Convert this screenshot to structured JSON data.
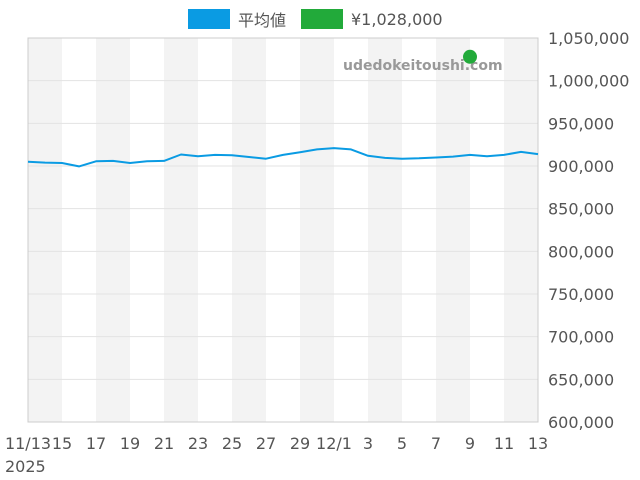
{
  "chart_data": {
    "type": "line",
    "x_tick_labels": [
      "11/13",
      "15",
      "17",
      "19",
      "21",
      "23",
      "25",
      "27",
      "29",
      "12/1",
      "3",
      "5",
      "7",
      "9",
      "11",
      "13"
    ],
    "x_year_label": "2025",
    "ylim": [
      600000,
      1050000
    ],
    "y_tick_values": [
      600000,
      650000,
      700000,
      750000,
      800000,
      850000,
      900000,
      950000,
      1000000,
      1050000
    ],
    "y_tick_labels": [
      "600,000",
      "650,000",
      "700,000",
      "750,000",
      "800,000",
      "850,000",
      "900,000",
      "950,000",
      "1,000,000",
      "1,050,000"
    ],
    "series": [
      {
        "name": "平均値",
        "color": "#0a9be3",
        "x": [
          "2025-11-13",
          "2025-11-14",
          "2025-11-15",
          "2025-11-16",
          "2025-11-17",
          "2025-11-18",
          "2025-11-19",
          "2025-11-20",
          "2025-11-21",
          "2025-11-22",
          "2025-11-23",
          "2025-11-24",
          "2025-11-25",
          "2025-11-26",
          "2025-11-27",
          "2025-11-28",
          "2025-11-29",
          "2025-11-30",
          "2025-12-01",
          "2025-12-02",
          "2025-12-03",
          "2025-12-04",
          "2025-12-05",
          "2025-12-06",
          "2025-12-07",
          "2025-12-08",
          "2025-12-09",
          "2025-12-10",
          "2025-12-11",
          "2025-12-12",
          "2025-12-13"
        ],
        "values": [
          905000,
          904000,
          903500,
          899500,
          905500,
          906000,
          903500,
          905500,
          906000,
          913500,
          911500,
          913000,
          912500,
          910500,
          908500,
          913000,
          916000,
          919500,
          921000,
          919500,
          912000,
          909500,
          908500,
          909000,
          910000,
          911000,
          913000,
          911500,
          913000,
          916500,
          914000
        ]
      },
      {
        "name": "¥1,028,000",
        "color": "#22aa3a",
        "type": "scatter",
        "x": [
          "2025-12-09"
        ],
        "values": [
          1028000
        ]
      }
    ],
    "grid": true,
    "legend": "top-center",
    "weekend_bands_color": "#f3f3f3",
    "watermark": "udedokeitoushi.com"
  }
}
